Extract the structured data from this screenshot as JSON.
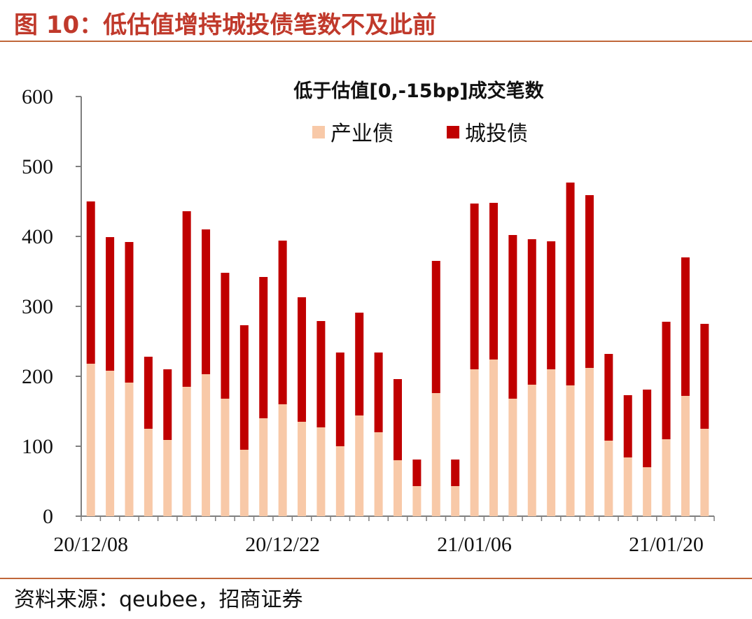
{
  "figure": {
    "title": "图 10：低估值增持城投债笔数不及此前",
    "source": "资料来源：qeubee，招商证券"
  },
  "chart_data": {
    "type": "bar",
    "stacked": true,
    "title": "低于估值[0,-15bp]成交笔数",
    "xlabel": "",
    "ylabel": "",
    "ylim": [
      0,
      600
    ],
    "yticks": [
      "0",
      "100",
      "200",
      "300",
      "400",
      "500",
      "600"
    ],
    "xtick_labels": [
      {
        "index": 0,
        "label": "20/12/08"
      },
      {
        "index": 10,
        "label": "20/12/22"
      },
      {
        "index": 20,
        "label": "21/01/06"
      },
      {
        "index": 30,
        "label": "21/01/20"
      }
    ],
    "legend_position": "top",
    "grid": false,
    "series": [
      {
        "name": "产业债",
        "color": "#f8c9a8",
        "values": [
          218,
          208,
          191,
          125,
          109,
          185,
          203,
          168,
          95,
          140,
          160,
          135,
          127,
          100,
          144,
          120,
          80,
          43,
          176,
          43,
          210,
          224,
          168,
          188,
          210,
          187,
          212,
          108,
          84,
          70,
          110,
          172,
          125
        ]
      },
      {
        "name": "城投债",
        "color": "#c00000",
        "values": [
          232,
          191,
          201,
          103,
          101,
          251,
          207,
          180,
          178,
          202,
          234,
          178,
          152,
          134,
          147,
          114,
          116,
          38,
          189,
          38,
          237,
          224,
          234,
          208,
          183,
          290,
          247,
          124,
          89,
          111,
          168,
          198,
          150
        ]
      }
    ]
  }
}
